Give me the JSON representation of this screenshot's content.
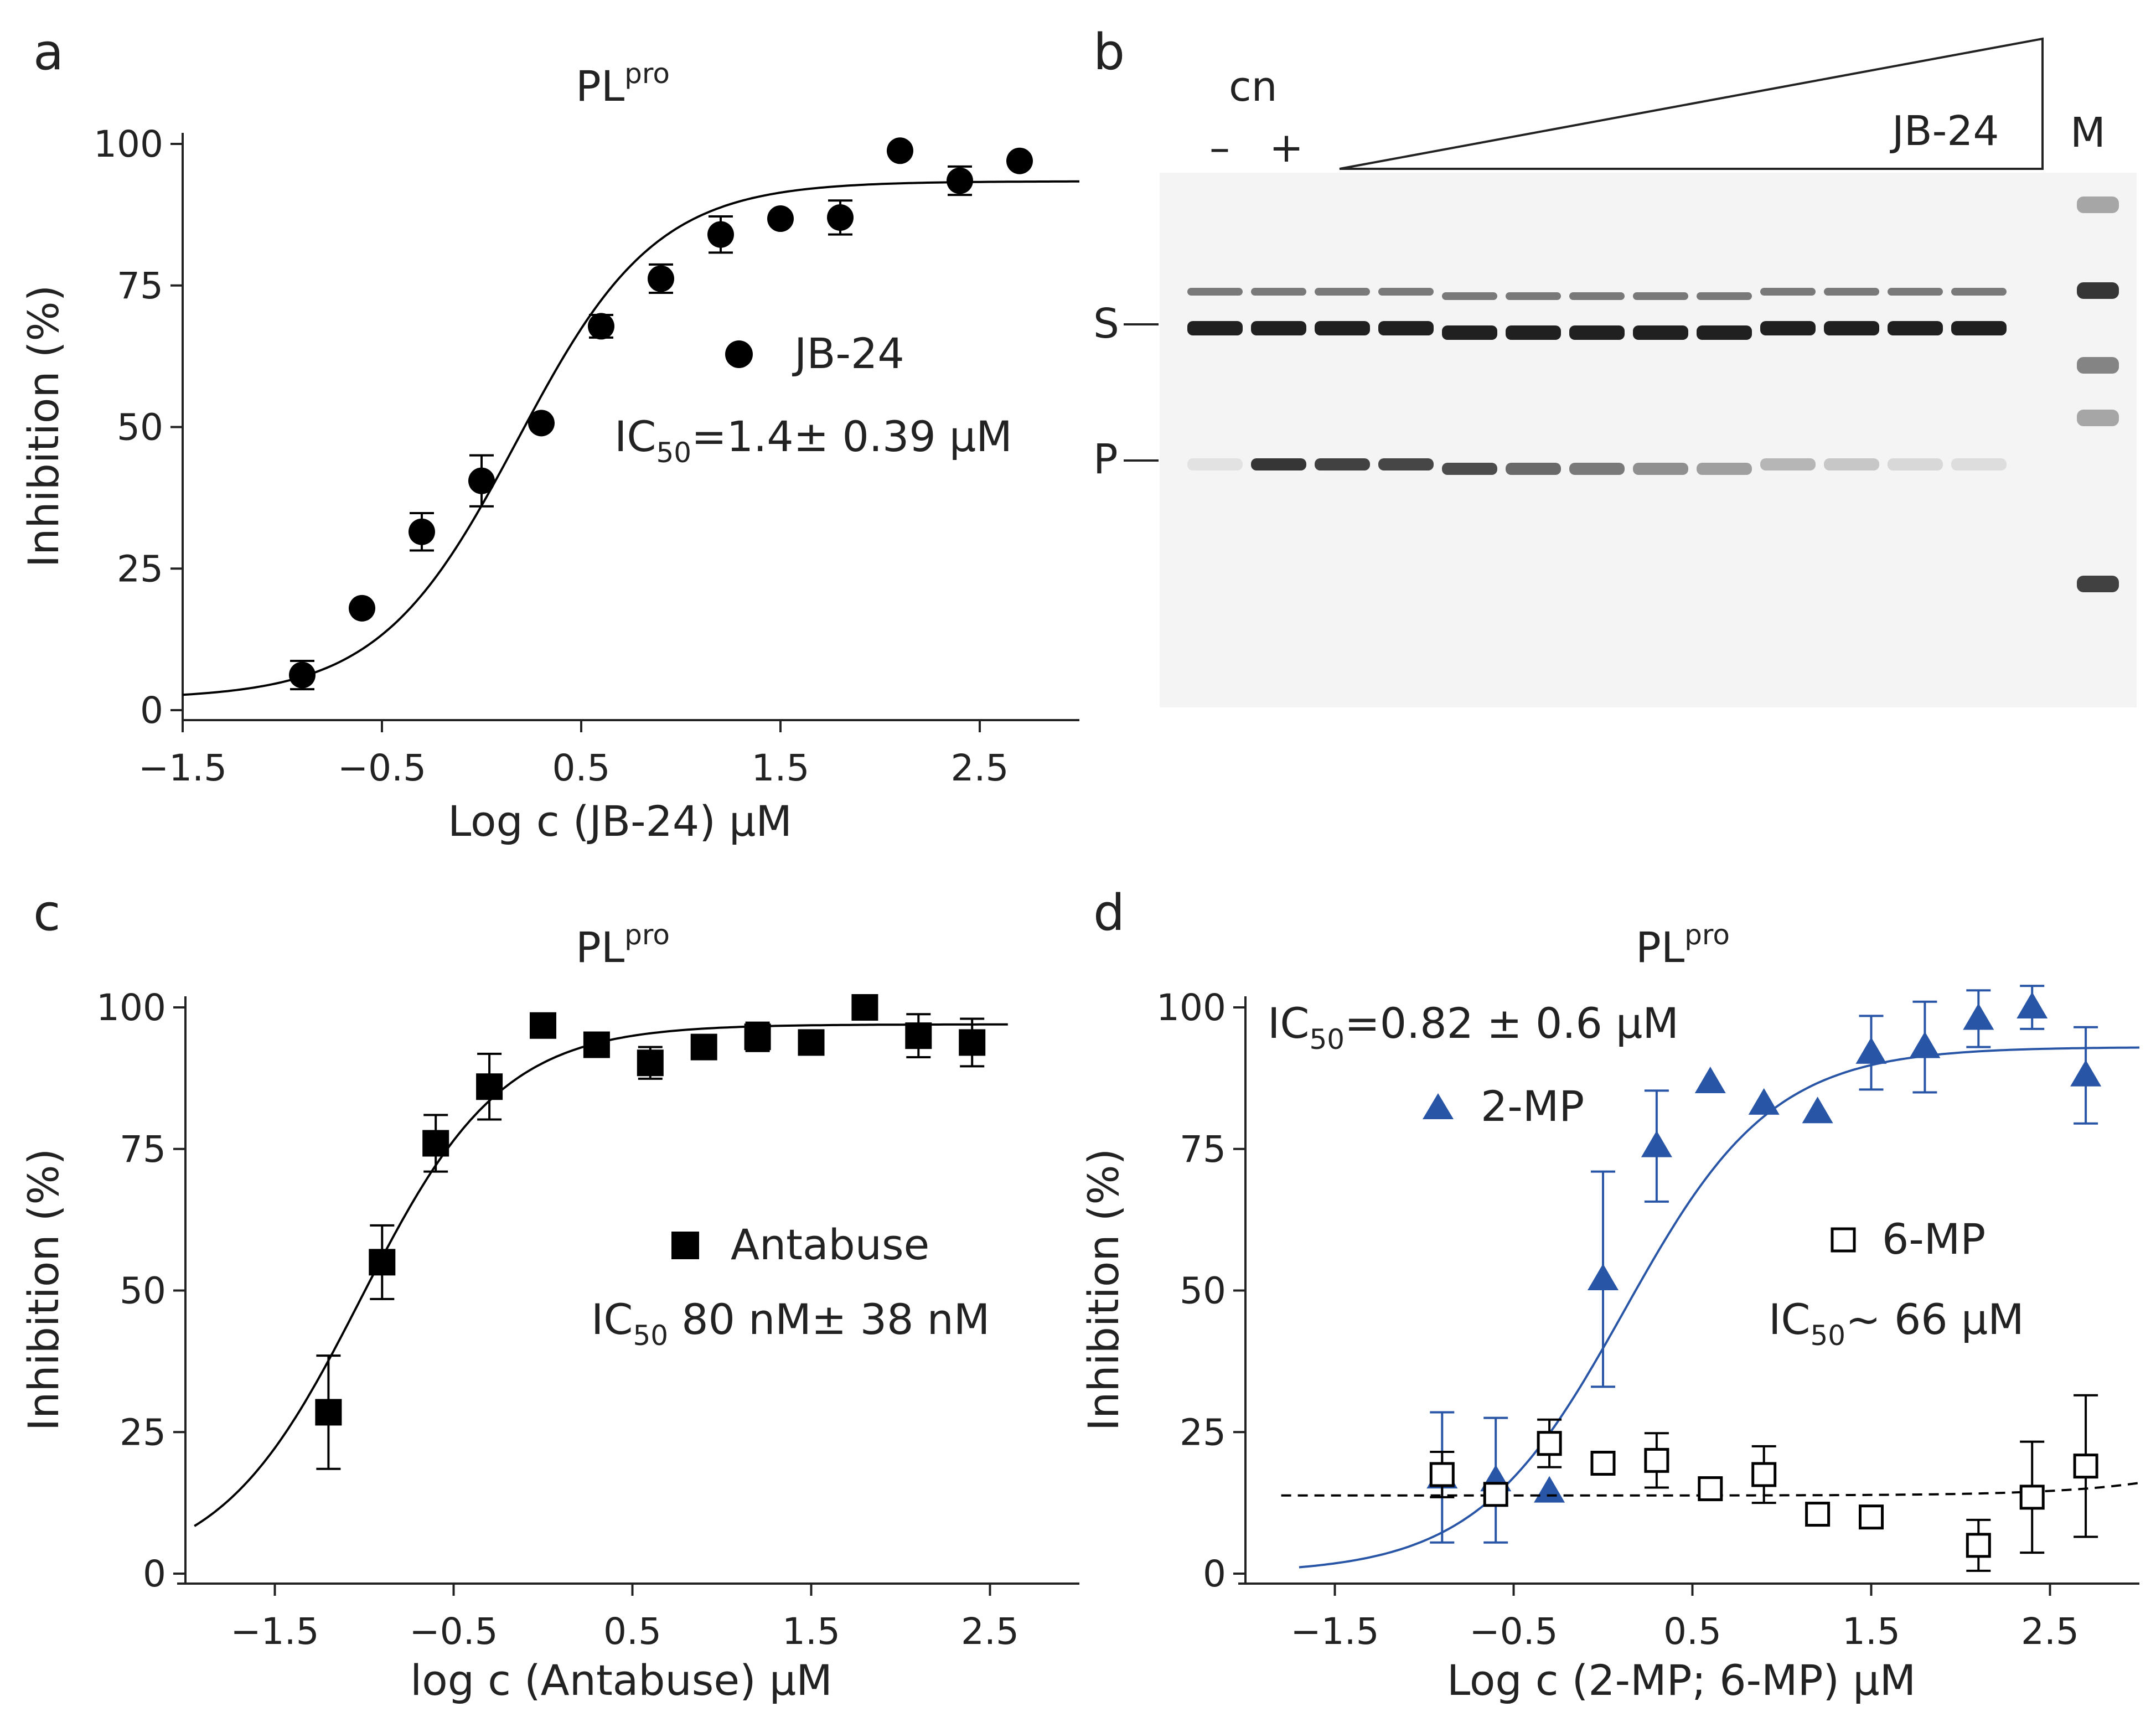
{
  "figure": {
    "panels": {
      "a": {
        "label": "a",
        "title_main": "PL",
        "title_sup": "pro"
      },
      "b": {
        "label": "b"
      },
      "c": {
        "label": "c",
        "title_main": "PL",
        "title_sup": "pro"
      },
      "d": {
        "label": "d",
        "title_main": "PL",
        "title_sup": "pro"
      }
    }
  },
  "gel": {
    "control_label": "cn",
    "minus": "–",
    "plus": "+",
    "compound": "JB-24",
    "marker": "M",
    "substrate": "S",
    "product": "P",
    "band_color": "#141414",
    "background_color": "#f4f4f4"
  },
  "chart_data": [
    {
      "id": "a",
      "type": "scatter",
      "title": "PLpro",
      "xlabel": "Log c (JB-24) μM",
      "ylabel": "Inhibition (%)",
      "xlim": [
        -1.5,
        3.0
      ],
      "ylim": [
        0,
        100
      ],
      "xticks": [
        -1.5,
        -0.5,
        0.5,
        1.5,
        2.5
      ],
      "xtick_labels": [
        "−1.5",
        "−0.5",
        "0.5",
        "1.5",
        "2.5"
      ],
      "yticks": [
        0,
        25,
        50,
        75,
        100
      ],
      "legend_location": "center-right",
      "series": [
        {
          "name": "JB-24",
          "marker": "circle",
          "filled": true,
          "color": "#000000",
          "ic50_prefix": "IC",
          "ic50_sub": "50",
          "ic50_text": "=1.4± 0.39 μM",
          "x": [
            -0.9,
            -0.6,
            -0.3,
            0.0,
            0.3,
            0.6,
            0.9,
            1.2,
            1.5,
            1.8,
            2.1,
            2.4,
            2.7
          ],
          "y": [
            6.2,
            18.0,
            31.5,
            40.5,
            50.7,
            67.8,
            76.2,
            84.0,
            86.8,
            87.0,
            98.8,
            93.5,
            97.0
          ],
          "err": [
            2.5,
            0,
            3.3,
            4.5,
            0,
            2.0,
            2.5,
            3.2,
            0,
            3.0,
            0,
            2.5,
            0
          ],
          "fit": {
            "bottom": 2.0,
            "top": 93.4,
            "logIC50": 0.18,
            "hill": 1.25,
            "xmin": -1.5,
            "xmax": 3.0,
            "dashed": false
          }
        }
      ]
    },
    {
      "id": "c",
      "type": "scatter",
      "title": "PLpro",
      "xlabel": "log c (Antabuse) μM",
      "ylabel": "Inhibition (%)",
      "xlim": [
        -2.0,
        3.0
      ],
      "ylim": [
        0,
        100
      ],
      "xticks": [
        -1.5,
        -0.5,
        0.5,
        1.5,
        2.5
      ],
      "xtick_labels": [
        "−1.5",
        "−0.5",
        "0.5",
        "1.5",
        "2.5"
      ],
      "yticks": [
        0,
        25,
        50,
        75,
        100
      ],
      "legend_location": "center-right",
      "series": [
        {
          "name": "Antabuse",
          "marker": "square",
          "filled": true,
          "color": "#000000",
          "ic50_prefix": "IC",
          "ic50_sub": "50",
          "ic50_text": " 80 nM± 38 nM",
          "x": [
            -1.2,
            -0.9,
            -0.6,
            -0.3,
            0.0,
            0.3,
            0.6,
            0.9,
            1.2,
            1.5,
            1.8,
            2.1,
            2.4
          ],
          "y": [
            28.5,
            55.0,
            76.0,
            86.0,
            96.8,
            93.4,
            90.2,
            93.0,
            94.8,
            93.8,
            100.0,
            95.0,
            93.8
          ],
          "err": [
            10.0,
            6.5,
            5.0,
            5.8,
            0,
            0,
            2.8,
            0,
            2.5,
            0,
            0,
            3.8,
            4.2
          ],
          "fit": {
            "bottom": 0.0,
            "top": 97.0,
            "logIC50": -1.02,
            "hill": 1.1,
            "xmin": -1.95,
            "xmax": 2.6,
            "dashed": false
          }
        }
      ]
    },
    {
      "id": "d",
      "type": "scatter",
      "title": "PLpro",
      "xlabel": "Log c (2-MP; 6-MP) μM",
      "ylabel": "Inhibition (%)",
      "xlim": [
        -2.0,
        3.0
      ],
      "ylim": [
        0,
        100
      ],
      "xticks": [
        -1.5,
        -0.5,
        0.5,
        1.5,
        2.5
      ],
      "xtick_labels": [
        "−1.5",
        "−0.5",
        "0.5",
        "1.5",
        "2.5"
      ],
      "yticks": [
        0,
        25,
        50,
        75,
        100
      ],
      "legend_location": "top-left / center-right",
      "series": [
        {
          "name": "2-MP",
          "marker": "triangle",
          "filled": true,
          "color": "#2855a6",
          "ic50_prefix": "IC",
          "ic50_sub": "50",
          "ic50_text": "=0.82 ± 0.6 μM",
          "x": [
            -0.9,
            -0.6,
            -0.3,
            0.0,
            0.3,
            0.6,
            0.9,
            1.2,
            1.5,
            1.8,
            2.1,
            2.4,
            2.7
          ],
          "y": [
            17.0,
            16.5,
            14.5,
            52.0,
            75.5,
            86.8,
            83.0,
            81.5,
            92.0,
            93.0,
            98.0,
            100.0,
            88.0
          ],
          "err": [
            11.5,
            11.0,
            0,
            19.0,
            9.8,
            0,
            0,
            0,
            6.5,
            8.0,
            5.0,
            3.8,
            8.5
          ],
          "fit": {
            "bottom": 0.0,
            "top": 93.0,
            "logIC50": 0.12,
            "hill": 1.05,
            "xmin": -1.7,
            "xmax": 3.0,
            "dashed": false
          }
        },
        {
          "name": "6-MP",
          "marker": "square",
          "filled": false,
          "color": "#000000",
          "ic50_prefix": "IC",
          "ic50_sub": "50",
          "ic50_text": "~ 66 μM",
          "x": [
            -0.9,
            -0.6,
            -0.3,
            0.0,
            0.3,
            0.6,
            0.9,
            1.2,
            1.5,
            2.1,
            2.4,
            2.7
          ],
          "y": [
            17.5,
            14.0,
            23.0,
            19.5,
            20.0,
            15.0,
            17.5,
            10.5,
            10.0,
            5.0,
            13.5,
            19.0
          ],
          "err": [
            4.0,
            0,
            4.2,
            2.0,
            4.8,
            0,
            5.0,
            0,
            0,
            4.5,
            9.8,
            12.5
          ],
          "fit": {
            "bottom": 13.8,
            "top": 100.0,
            "logIC50": 4.75,
            "hill": 0.9,
            "xmin": -1.8,
            "xmax": 3.0,
            "dashed": true
          }
        }
      ]
    }
  ]
}
